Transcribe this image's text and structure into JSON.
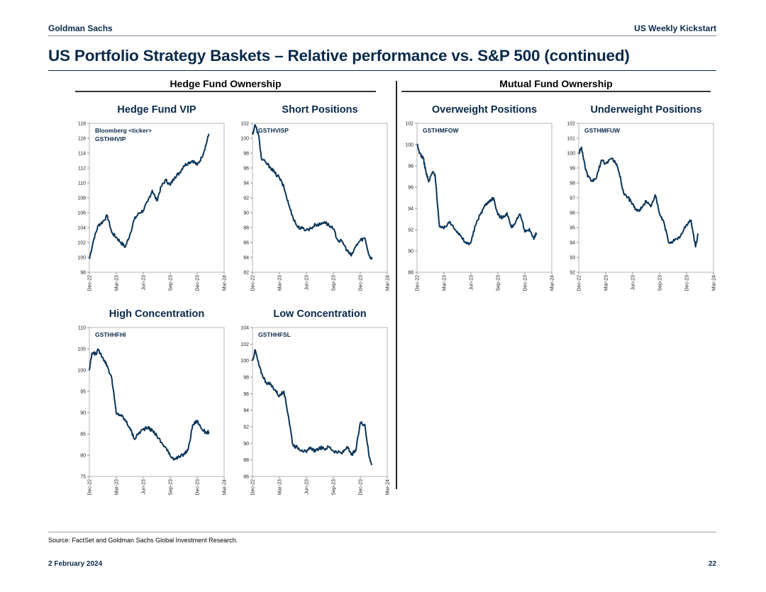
{
  "header": {
    "firm": "Goldman Sachs",
    "publication": "US Weekly Kickstart"
  },
  "title": "US Portfolio Strategy Baskets – Relative performance vs. S&P 500 (continued)",
  "sections": {
    "left": "Hedge Fund Ownership",
    "right": "Mutual Fund Ownership"
  },
  "footer": {
    "source": "Source: FactSet and Goldman Sachs Global Investment Research.",
    "date": "2 February 2024",
    "page": "22"
  },
  "colors": {
    "line": "#0b3558",
    "brand": "#0a2a4a"
  },
  "chart_data": [
    {
      "type": "line",
      "title": "Hedge Fund VIP",
      "annotation": [
        "Bloomberg <ticker>",
        "GSTHHVIP"
      ],
      "ylim": [
        98,
        118
      ],
      "yticks": [
        98,
        100,
        102,
        104,
        106,
        108,
        110,
        112,
        114,
        116,
        118
      ],
      "xlim": [
        0,
        15
      ],
      "xticks": [
        0,
        3,
        6,
        9,
        12,
        15
      ],
      "xticklabels": [
        "Dec-22",
        "Mar-23",
        "Jun-23",
        "Sep-23",
        "Dec-23",
        "Mar-24"
      ],
      "series": [
        {
          "name": "GSTHHVIP",
          "x": [
            0,
            0.5,
            1,
            1.5,
            2,
            2.5,
            3,
            3.5,
            4,
            4.5,
            5,
            5.5,
            6,
            6.5,
            7,
            7.5,
            8,
            8.5,
            9,
            9.5,
            10,
            10.5,
            11,
            11.5,
            12,
            12.5,
            13,
            13.3
          ],
          "y": [
            99.8,
            102.5,
            104.3,
            104.8,
            105.6,
            103.3,
            102.7,
            102,
            101.4,
            103,
            105.1,
            105.9,
            106.3,
            107.5,
            109,
            107.6,
            109.5,
            110.4,
            109.7,
            110.8,
            111.3,
            112.3,
            112.7,
            113,
            112.4,
            113.4,
            115.2,
            116.6
          ]
        }
      ]
    },
    {
      "type": "line",
      "title": "Short Positions",
      "annotation": [
        "GSTHVISP"
      ],
      "ylim": [
        82,
        102
      ],
      "yticks": [
        82,
        84,
        86,
        88,
        90,
        92,
        94,
        96,
        98,
        100,
        102
      ],
      "xlim": [
        0,
        15
      ],
      "xticks": [
        0,
        3,
        6,
        9,
        12,
        15
      ],
      "xticklabels": [
        "Dec-22",
        "Mar-23",
        "Jun-23",
        "Sep-23",
        "Dec-23",
        "Mar-24"
      ],
      "series": [
        {
          "name": "GSTHVISP",
          "x": [
            0,
            0.3,
            0.7,
            1,
            1.5,
            2,
            2.5,
            3,
            3.5,
            4,
            4.5,
            5,
            5.5,
            6,
            6.5,
            7,
            7.5,
            8,
            8.5,
            9,
            9.5,
            10,
            10.5,
            11,
            11.5,
            12,
            12.5,
            13,
            13.3
          ],
          "y": [
            100.5,
            101.8,
            100.3,
            97.2,
            96.7,
            96.1,
            95.3,
            94.7,
            93.4,
            91.2,
            89.4,
            88.1,
            87.9,
            87.7,
            87.9,
            88.4,
            88.4,
            88.8,
            88.3,
            87.8,
            86.3,
            86.1,
            85,
            84.2,
            85.5,
            86.3,
            86.6,
            84.2,
            83.8
          ]
        }
      ]
    },
    {
      "type": "line",
      "title": "Overweight Positions",
      "annotation": [
        "GSTHMFOW"
      ],
      "ylim": [
        88,
        102
      ],
      "yticks": [
        88,
        90,
        92,
        94,
        96,
        98,
        100,
        102
      ],
      "xlim": [
        0,
        15
      ],
      "xticks": [
        0,
        3,
        6,
        9,
        12,
        15
      ],
      "xticklabels": [
        "Dec-22",
        "Mar-23",
        "Jun-23",
        "Sep-23",
        "Dec-23",
        "Mar-24"
      ],
      "series": [
        {
          "name": "GSTHMFOW",
          "x": [
            0,
            0.3,
            0.7,
            1,
            1.3,
            1.7,
            2,
            2.5,
            3,
            3.5,
            4,
            4.5,
            5,
            5.5,
            6,
            6.5,
            7,
            7.5,
            8,
            8.5,
            9,
            9.5,
            10,
            10.5,
            11,
            11.5,
            12,
            12.5,
            13,
            13.3
          ],
          "y": [
            100,
            99.2,
            98.7,
            97.4,
            96.5,
            97.4,
            97.2,
            92.3,
            92.1,
            92.7,
            92.4,
            91.8,
            91.2,
            90.7,
            90.8,
            92.4,
            93.4,
            94.2,
            94.7,
            95,
            93.4,
            93.1,
            93.6,
            92.2,
            92.8,
            93.4,
            91.8,
            92.1,
            91.1,
            91.7
          ]
        }
      ]
    },
    {
      "type": "line",
      "title": "Underweight Positions",
      "annotation": [
        "GSTHMFUW"
      ],
      "ylim": [
        92,
        102
      ],
      "yticks": [
        92,
        93,
        94,
        95,
        96,
        97,
        98,
        99,
        100,
        101,
        102
      ],
      "xlim": [
        0,
        15
      ],
      "xticks": [
        0,
        3,
        6,
        9,
        12,
        15
      ],
      "xticklabels": [
        "Dec-22",
        "Mar-23",
        "Jun-23",
        "Sep-23",
        "Dec-23",
        "Mar-24"
      ],
      "series": [
        {
          "name": "GSTHMFUW",
          "x": [
            0,
            0.3,
            0.7,
            1,
            1.5,
            2,
            2.5,
            3,
            3.5,
            4,
            4.5,
            5,
            5.5,
            6,
            6.5,
            7,
            7.5,
            8,
            8.5,
            9,
            9.5,
            10,
            10.5,
            11,
            11.5,
            12,
            12.5,
            13,
            13.3
          ],
          "y": [
            100,
            100.4,
            99.1,
            98.4,
            98.1,
            98.4,
            99.5,
            99.3,
            99.6,
            99.5,
            98.7,
            97.3,
            97,
            96.6,
            96.1,
            96.3,
            96.8,
            96.4,
            97.2,
            95.9,
            95.3,
            94,
            94.1,
            94.2,
            94.6,
            95.2,
            95.5,
            93.7,
            94.6
          ]
        }
      ]
    },
    {
      "type": "line",
      "title": "High Concentration",
      "annotation": [
        "GSTHHFHI"
      ],
      "ylim": [
        75,
        110
      ],
      "yticks": [
        75,
        80,
        85,
        90,
        95,
        100,
        105,
        110
      ],
      "xlim": [
        0,
        15
      ],
      "xticks": [
        0,
        3,
        6,
        9,
        12,
        15
      ],
      "xticklabels": [
        "Dec-22",
        "Mar-23",
        "Jun-23",
        "Sep-23",
        "Dec-23",
        "Mar-24"
      ],
      "series": [
        {
          "name": "GSTHHFHI",
          "x": [
            0,
            0.3,
            0.7,
            1,
            1.5,
            2,
            2.5,
            3,
            3.5,
            4,
            4.5,
            5,
            5.5,
            6,
            6.5,
            7,
            7.5,
            8,
            8.5,
            9,
            9.5,
            10,
            10.5,
            11,
            11.5,
            12,
            12.5,
            13,
            13.3
          ],
          "y": [
            100,
            104,
            103.8,
            104.7,
            103,
            101,
            98,
            89.7,
            89.5,
            88.2,
            86.5,
            83.8,
            85.2,
            86.1,
            86.4,
            85.8,
            84.7,
            83,
            81.8,
            79.8,
            79.2,
            79.5,
            80.2,
            81.3,
            87.1,
            88.1,
            86.2,
            85.3,
            85.5
          ]
        }
      ]
    },
    {
      "type": "line",
      "title": "Low Concentration",
      "annotation": [
        "GSTHHFSL"
      ],
      "ylim": [
        86,
        104
      ],
      "yticks": [
        86,
        88,
        90,
        92,
        94,
        96,
        98,
        100,
        102,
        104
      ],
      "xlim": [
        0,
        15
      ],
      "xticks": [
        0,
        3,
        6,
        9,
        12,
        15
      ],
      "xticklabels": [
        "Dec-22",
        "Mar-23",
        "Jun-23",
        "Sep-23",
        "Dec-23",
        "Mar-24"
      ],
      "series": [
        {
          "name": "GSTHHFSL",
          "x": [
            0,
            0.3,
            0.7,
            1,
            1.5,
            2,
            2.5,
            3,
            3.5,
            4,
            4.5,
            5,
            5.5,
            6,
            6.5,
            7,
            7.5,
            8,
            8.5,
            9,
            9.5,
            10,
            10.5,
            11,
            11.5,
            12,
            12.5,
            13,
            13.3
          ],
          "y": [
            100,
            101.3,
            99.5,
            98.5,
            97.4,
            97.1,
            96.5,
            95.7,
            96.3,
            93.3,
            89.8,
            89.5,
            89.2,
            88.9,
            89.5,
            89,
            89.5,
            89.3,
            89.6,
            89.1,
            88.9,
            88.8,
            89.6,
            88.6,
            89.1,
            92.5,
            92.3,
            88.3,
            87.5
          ]
        }
      ]
    }
  ]
}
